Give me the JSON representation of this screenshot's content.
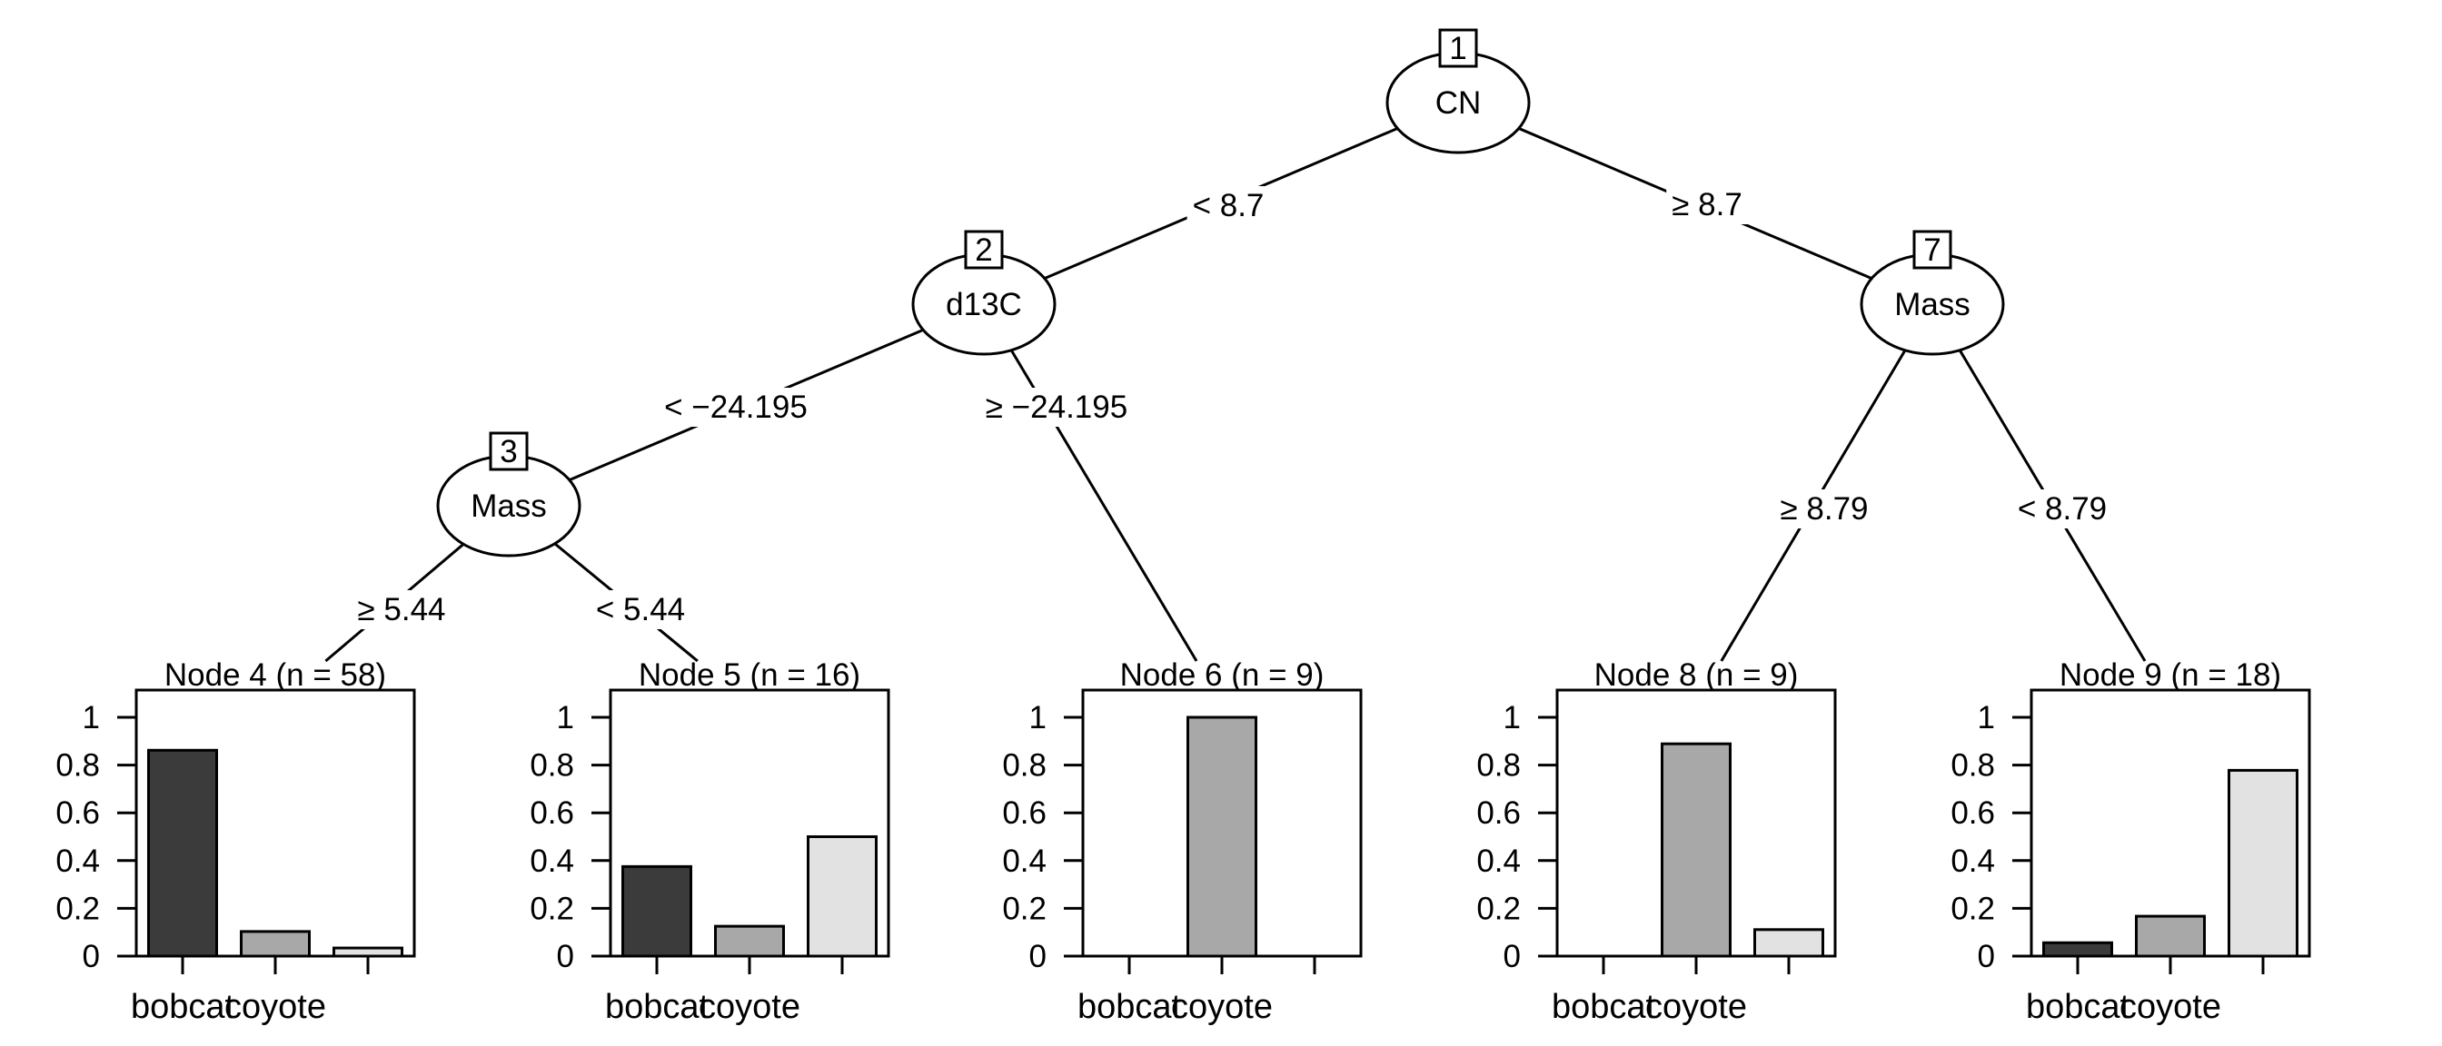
{
  "chart_data": {
    "type": "bar",
    "subtype": "decision-tree-with-terminal-barplots",
    "background": "#ffffff",
    "line_color": "#000000",
    "categories": [
      "bobcat",
      "coyote",
      ""
    ],
    "bar_colors": [
      "#3b3b3b",
      "#a8a8a8",
      "#e2e2e2"
    ],
    "yticks": [
      0,
      0.2,
      0.4,
      0.6,
      0.8,
      1
    ],
    "ytick_labels": [
      "0",
      "0.2",
      "0.4",
      "0.6",
      "0.8",
      "1"
    ],
    "ylim": [
      0,
      1.1
    ],
    "grid": "off",
    "inner_nodes": [
      {
        "id": "1",
        "split_var": "CN"
      },
      {
        "id": "2",
        "split_var": "d13C"
      },
      {
        "id": "3",
        "split_var": "Mass"
      },
      {
        "id": "7",
        "split_var": "Mass"
      }
    ],
    "edges": [
      {
        "from": "1",
        "to": "2",
        "label": "< 8.7"
      },
      {
        "from": "1",
        "to": "7",
        "label": "≥ 8.7"
      },
      {
        "from": "2",
        "to": "3",
        "label": "< −24.195"
      },
      {
        "from": "2",
        "to": "6",
        "label": "≥ −24.195"
      },
      {
        "from": "3",
        "to": "4",
        "label": "≥ 5.44"
      },
      {
        "from": "3",
        "to": "5",
        "label": "< 5.44"
      },
      {
        "from": "7",
        "to": "8",
        "label": "≥ 8.79"
      },
      {
        "from": "7",
        "to": "9",
        "label": "< 8.79"
      }
    ],
    "panels": [
      {
        "node": "4",
        "title": "Node 4 (n = 58)",
        "n": 58,
        "values": [
          0.862,
          0.103,
          0.034
        ]
      },
      {
        "node": "5",
        "title": "Node 5 (n = 16)",
        "n": 16,
        "values": [
          0.375,
          0.125,
          0.5
        ]
      },
      {
        "node": "6",
        "title": "Node 6 (n = 9)",
        "n": 9,
        "values": [
          0,
          1,
          0
        ]
      },
      {
        "node": "8",
        "title": "Node 8 (n = 9)",
        "n": 9,
        "values": [
          0,
          0.889,
          0.111
        ]
      },
      {
        "node": "9",
        "title": "Node 9 (n = 18)",
        "n": 18,
        "values": [
          0.056,
          0.167,
          0.778
        ]
      }
    ]
  }
}
